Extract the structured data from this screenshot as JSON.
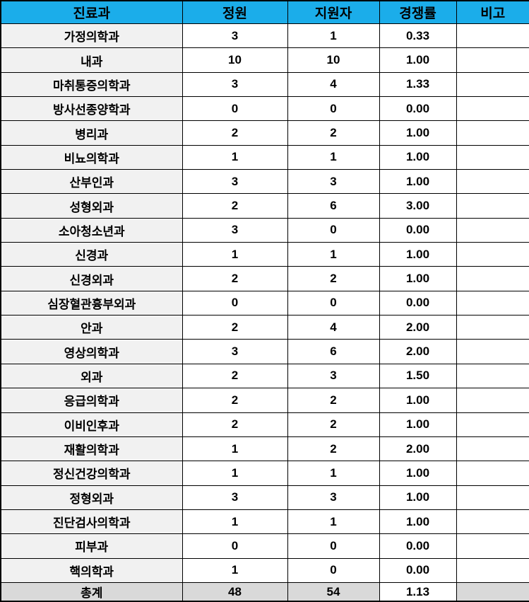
{
  "table": {
    "columns": [
      {
        "label": "진료과"
      },
      {
        "label": "정원"
      },
      {
        "label": "지원자"
      },
      {
        "label": "경쟁률"
      },
      {
        "label": "비고"
      }
    ],
    "rows": [
      {
        "dept": "가정의학과",
        "quota": "3",
        "applicants": "1",
        "ratio": "0.33",
        "note": ""
      },
      {
        "dept": "내과",
        "quota": "10",
        "applicants": "10",
        "ratio": "1.00",
        "note": ""
      },
      {
        "dept": "마취통증의학과",
        "quota": "3",
        "applicants": "4",
        "ratio": "1.33",
        "note": ""
      },
      {
        "dept": "방사선종양학과",
        "quota": "0",
        "applicants": "0",
        "ratio": "0.00",
        "note": ""
      },
      {
        "dept": "병리과",
        "quota": "2",
        "applicants": "2",
        "ratio": "1.00",
        "note": ""
      },
      {
        "dept": "비뇨의학과",
        "quota": "1",
        "applicants": "1",
        "ratio": "1.00",
        "note": ""
      },
      {
        "dept": "산부인과",
        "quota": "3",
        "applicants": "3",
        "ratio": "1.00",
        "note": ""
      },
      {
        "dept": "성형외과",
        "quota": "2",
        "applicants": "6",
        "ratio": "3.00",
        "note": ""
      },
      {
        "dept": "소아청소년과",
        "quota": "3",
        "applicants": "0",
        "ratio": "0.00",
        "note": ""
      },
      {
        "dept": "신경과",
        "quota": "1",
        "applicants": "1",
        "ratio": "1.00",
        "note": ""
      },
      {
        "dept": "신경외과",
        "quota": "2",
        "applicants": "2",
        "ratio": "1.00",
        "note": ""
      },
      {
        "dept": "심장혈관흉부외과",
        "quota": "0",
        "applicants": "0",
        "ratio": "0.00",
        "note": ""
      },
      {
        "dept": "안과",
        "quota": "2",
        "applicants": "4",
        "ratio": "2.00",
        "note": ""
      },
      {
        "dept": "영상의학과",
        "quota": "3",
        "applicants": "6",
        "ratio": "2.00",
        "note": ""
      },
      {
        "dept": "외과",
        "quota": "2",
        "applicants": "3",
        "ratio": "1.50",
        "note": ""
      },
      {
        "dept": "응급의학과",
        "quota": "2",
        "applicants": "2",
        "ratio": "1.00",
        "note": ""
      },
      {
        "dept": "이비인후과",
        "quota": "2",
        "applicants": "2",
        "ratio": "1.00",
        "note": ""
      },
      {
        "dept": "재활의학과",
        "quota": "1",
        "applicants": "2",
        "ratio": "2.00",
        "note": ""
      },
      {
        "dept": "정신건강의학과",
        "quota": "1",
        "applicants": "1",
        "ratio": "1.00",
        "note": ""
      },
      {
        "dept": "정형외과",
        "quota": "3",
        "applicants": "3",
        "ratio": "1.00",
        "note": ""
      },
      {
        "dept": "진단검사의학과",
        "quota": "1",
        "applicants": "1",
        "ratio": "1.00",
        "note": ""
      },
      {
        "dept": "피부과",
        "quota": "0",
        "applicants": "0",
        "ratio": "0.00",
        "note": ""
      },
      {
        "dept": "핵의학과",
        "quota": "1",
        "applicants": "0",
        "ratio": "0.00",
        "note": ""
      }
    ],
    "total": {
      "dept": "총계",
      "quota": "48",
      "applicants": "54",
      "ratio": "1.13",
      "note": ""
    }
  },
  "colors": {
    "header_bg": "#1badea",
    "header_text": "#ffffff",
    "dept_cell_bg": "#f1f1f1",
    "total_row_bg": "#d9d9d9",
    "border": "#000000"
  }
}
